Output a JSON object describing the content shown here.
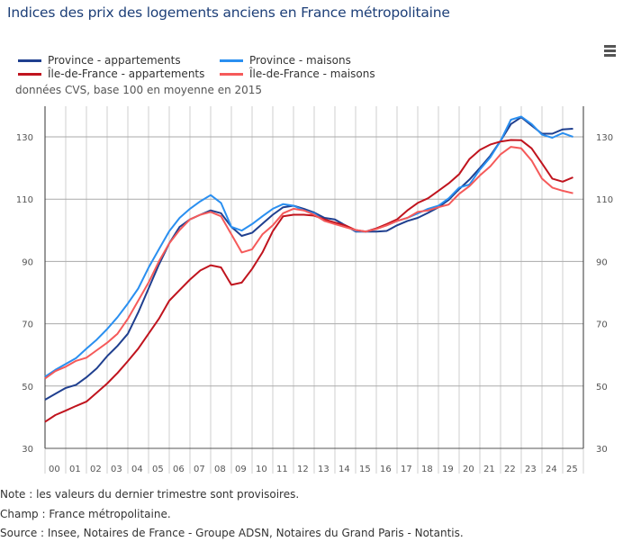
{
  "title": "Indices des prix des logements anciens en France métropolitaine",
  "menu_icon": "hamburger-icon",
  "subtitle": "données CVS, base 100 en moyenne en 2015",
  "notes": [
    "Note : les valeurs du dernier trimestre sont provisoires.",
    "Champ : France métropolitaine.",
    "Source : Insee, Notaires de France - Groupe ADSN, Notaires du Grand Paris - Notantis."
  ],
  "chart_data": {
    "type": "line",
    "title": "Indices des prix des logements anciens en France métropolitaine",
    "subtitle": "données CVS, base 100 en moyenne en 2015",
    "xlim": [
      2000,
      2026
    ],
    "ylim": [
      30,
      140
    ],
    "yticks": [
      30,
      50,
      70,
      90,
      110,
      130
    ],
    "xtick_labels": [
      "00",
      "01",
      "02",
      "03",
      "04",
      "05",
      "06",
      "07",
      "08",
      "09",
      "10",
      "11",
      "12",
      "13",
      "14",
      "15",
      "16",
      "17",
      "18",
      "19",
      "20",
      "21",
      "22",
      "23",
      "24",
      "25"
    ],
    "grid": true,
    "legend_position": "top-left",
    "x": [
      2000,
      2000.5,
      2001,
      2001.5,
      2002,
      2002.5,
      2003,
      2003.5,
      2004,
      2004.5,
      2005,
      2005.5,
      2006,
      2006.5,
      2007,
      2007.5,
      2008,
      2008.5,
      2009,
      2009.5,
      2010,
      2010.5,
      2011,
      2011.5,
      2012,
      2012.5,
      2013,
      2013.5,
      2014,
      2014.5,
      2015,
      2015.5,
      2016,
      2016.5,
      2017,
      2017.5,
      2018,
      2018.5,
      2019,
      2019.5,
      2020,
      2020.5,
      2021,
      2021.5,
      2022,
      2022.5,
      2023,
      2023.5,
      2024,
      2024.5,
      2025,
      2025.5
    ],
    "series": [
      {
        "name": "Province - appartements",
        "color": "#1f3f8f",
        "values": [
          45.6,
          47.5,
          49.4,
          50.4,
          52.8,
          55.7,
          59.6,
          62.9,
          66.8,
          73.6,
          81.3,
          89,
          95.8,
          101.1,
          103.5,
          105,
          106.4,
          105.5,
          101.1,
          98.2,
          99.2,
          102.1,
          105,
          107.4,
          107.9,
          106.9,
          105.7,
          104,
          103.5,
          101.6,
          99.6,
          99.6,
          99.6,
          99.8,
          101.6,
          103,
          104,
          105.6,
          107.4,
          109.8,
          113.2,
          116.3,
          120,
          123.9,
          128.7,
          134.1,
          136.3,
          133.6,
          131,
          131,
          132.4,
          132.6
        ]
      },
      {
        "name": "Province - maisons",
        "color": "#2a8ff0",
        "values": [
          53,
          55.2,
          57.1,
          59,
          62,
          64.9,
          68.3,
          72.1,
          76.5,
          81.3,
          88,
          93.9,
          99.7,
          104,
          106.9,
          109.3,
          111.3,
          108.8,
          101.1,
          99.9,
          102,
          104.5,
          106.9,
          108.4,
          107.9,
          106.4,
          105.4,
          103,
          102.5,
          101.6,
          99.8,
          99.6,
          100.6,
          101.6,
          103,
          104,
          105.4,
          106.9,
          107.9,
          110.3,
          113.7,
          114.7,
          119.5,
          123.4,
          128.7,
          135.5,
          136.5,
          134.1,
          130.7,
          129.7,
          131.2,
          130
        ]
      },
      {
        "name": "Île-de-France - appartements",
        "color": "#c0141e",
        "values": [
          38.5,
          40.7,
          42.1,
          43.6,
          45,
          47.9,
          50.8,
          54.2,
          58,
          62,
          66.8,
          71.6,
          77.4,
          80.8,
          84.2,
          87.1,
          88.8,
          88.1,
          82.5,
          83.2,
          87.6,
          92.9,
          99.7,
          104.5,
          105,
          105,
          104.7,
          103.5,
          102.5,
          101.6,
          100.1,
          99.6,
          100.6,
          102,
          103.5,
          106.4,
          108.8,
          110.3,
          112.7,
          115.1,
          118,
          122.9,
          125.8,
          127.5,
          128.5,
          129,
          128.9,
          126.3,
          121.5,
          116.6,
          115.6,
          117
        ]
      },
      {
        "name": "Île-de-France - maisons",
        "color": "#f55a5a",
        "values": [
          52.4,
          54.8,
          56.2,
          58.1,
          59.1,
          61.5,
          63.9,
          66.8,
          71.6,
          77.4,
          83.2,
          90,
          95.8,
          100.1,
          103.5,
          105,
          105.9,
          104.5,
          98.7,
          92.9,
          93.9,
          98.7,
          101.6,
          105.5,
          106.9,
          106.4,
          105,
          103,
          102,
          101,
          100.1,
          99.6,
          100.4,
          101.6,
          103,
          104,
          105.9,
          106.4,
          107.4,
          108.3,
          111.7,
          114.2,
          117.6,
          120.5,
          124.4,
          126.8,
          126.3,
          122.4,
          116.6,
          113.7,
          112.7,
          111.9
        ]
      }
    ]
  }
}
